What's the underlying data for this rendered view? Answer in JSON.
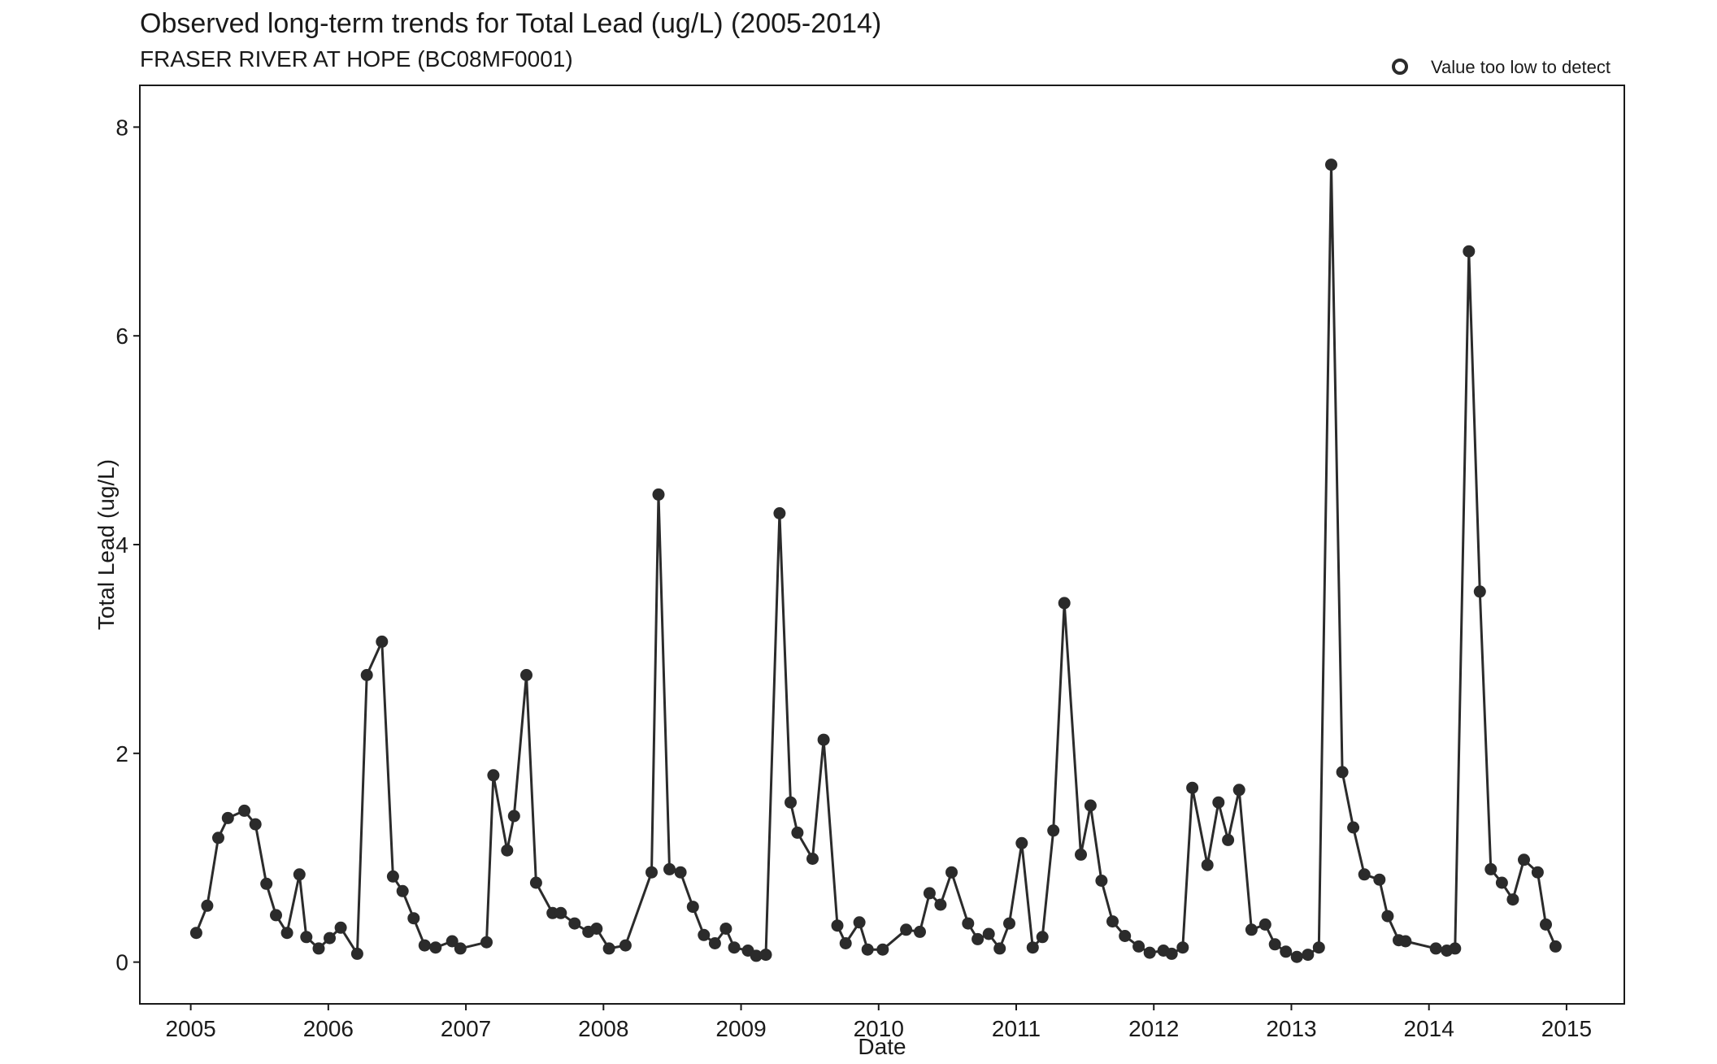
{
  "chart_data": {
    "type": "line",
    "title": "Observed long-term trends for Total Lead (ug/L) (2005-2014)",
    "subtitle": "FRASER RIVER AT HOPE (BC08MF0001)",
    "xlabel": "Date",
    "ylabel": "Total Lead (ug/L)",
    "xlim": [
      2004.63,
      2015.42
    ],
    "ylim": [
      -0.4,
      8.4
    ],
    "x_ticks": [
      2005,
      2006,
      2007,
      2008,
      2009,
      2010,
      2011,
      2012,
      2013,
      2014,
      2015
    ],
    "x_tick_labels": [
      "2005",
      "2006",
      "2007",
      "2008",
      "2009",
      "2010",
      "2011",
      "2012",
      "2013",
      "2014",
      "2015"
    ],
    "y_ticks": [
      0,
      2,
      4,
      6,
      8
    ],
    "y_tick_labels": [
      "0",
      "2",
      "4",
      "6",
      "8"
    ],
    "grid": false,
    "legend": {
      "position": "top-right",
      "entries": [
        {
          "label": "Value too low to detect",
          "marker": "open-circle"
        }
      ]
    },
    "colors": {
      "series": "#2b2b2b",
      "frame": "#1a1a1a"
    },
    "series": [
      {
        "x": [
          2005.04,
          2005.12,
          2005.2,
          2005.27,
          2005.39,
          2005.47,
          2005.55,
          2005.62,
          2005.7,
          2005.79,
          2005.84,
          2005.93,
          2006.01,
          2006.09,
          2006.21,
          2006.28,
          2006.39,
          2006.47,
          2006.54,
          2006.62,
          2006.7,
          2006.78,
          2006.9,
          2006.96,
          2007.15,
          2007.2,
          2007.3,
          2007.35,
          2007.44,
          2007.51,
          2007.63,
          2007.69,
          2007.79,
          2007.89,
          2007.95,
          2008.04,
          2008.16,
          2008.35,
          2008.4,
          2008.48,
          2008.56,
          2008.65,
          2008.73,
          2008.81,
          2008.89,
          2008.95,
          2009.05,
          2009.11,
          2009.18,
          2009.28,
          2009.36,
          2009.41,
          2009.52,
          2009.6,
          2009.7,
          2009.76,
          2009.86,
          2009.92,
          2010.03,
          2010.2,
          2010.3,
          2010.37,
          2010.45,
          2010.53,
          2010.65,
          2010.72,
          2010.8,
          2010.88,
          2010.95,
          2011.04,
          2011.12,
          2011.19,
          2011.27,
          2011.35,
          2011.47,
          2011.54,
          2011.62,
          2011.7,
          2011.79,
          2011.89,
          2011.97,
          2012.07,
          2012.13,
          2012.21,
          2012.28,
          2012.39,
          2012.47,
          2012.54,
          2012.62,
          2012.71,
          2012.81,
          2012.88,
          2012.96,
          2013.04,
          2013.12,
          2013.2,
          2013.29,
          2013.37,
          2013.45,
          2013.53,
          2013.64,
          2013.7,
          2013.78,
          2013.83,
          2014.05,
          2014.13,
          2014.19,
          2014.29,
          2014.37,
          2014.45,
          2014.53,
          2014.61,
          2014.69,
          2014.79,
          2014.85,
          2014.92
        ],
        "y": [
          0.28,
          0.54,
          1.19,
          1.38,
          1.45,
          1.32,
          0.75,
          0.45,
          0.28,
          0.84,
          0.24,
          0.13,
          0.23,
          0.33,
          0.08,
          2.75,
          3.07,
          0.82,
          0.68,
          0.42,
          0.16,
          0.14,
          0.2,
          0.13,
          0.19,
          1.79,
          1.07,
          1.4,
          2.75,
          0.76,
          0.47,
          0.47,
          0.37,
          0.29,
          0.32,
          0.13,
          0.16,
          0.86,
          4.48,
          0.89,
          0.86,
          0.53,
          0.26,
          0.18,
          0.32,
          0.14,
          0.11,
          0.06,
          0.07,
          4.3,
          1.53,
          1.24,
          0.99,
          2.13,
          0.35,
          0.18,
          0.38,
          0.12,
          0.12,
          0.31,
          0.29,
          0.66,
          0.55,
          0.86,
          0.37,
          0.22,
          0.27,
          0.13,
          0.37,
          1.14,
          0.14,
          0.24,
          1.26,
          3.44,
          1.03,
          1.5,
          0.78,
          0.39,
          0.25,
          0.15,
          0.09,
          0.11,
          0.08,
          0.14,
          1.67,
          0.93,
          1.53,
          1.17,
          1.65,
          0.31,
          0.36,
          0.17,
          0.1,
          0.05,
          0.07,
          0.14,
          7.64,
          1.82,
          1.29,
          0.84,
          0.79,
          0.44,
          0.21,
          0.2,
          0.13,
          0.11,
          0.13,
          6.81,
          3.55,
          0.89,
          0.76,
          0.6,
          0.98,
          0.86,
          0.36,
          0.15
        ]
      }
    ]
  }
}
